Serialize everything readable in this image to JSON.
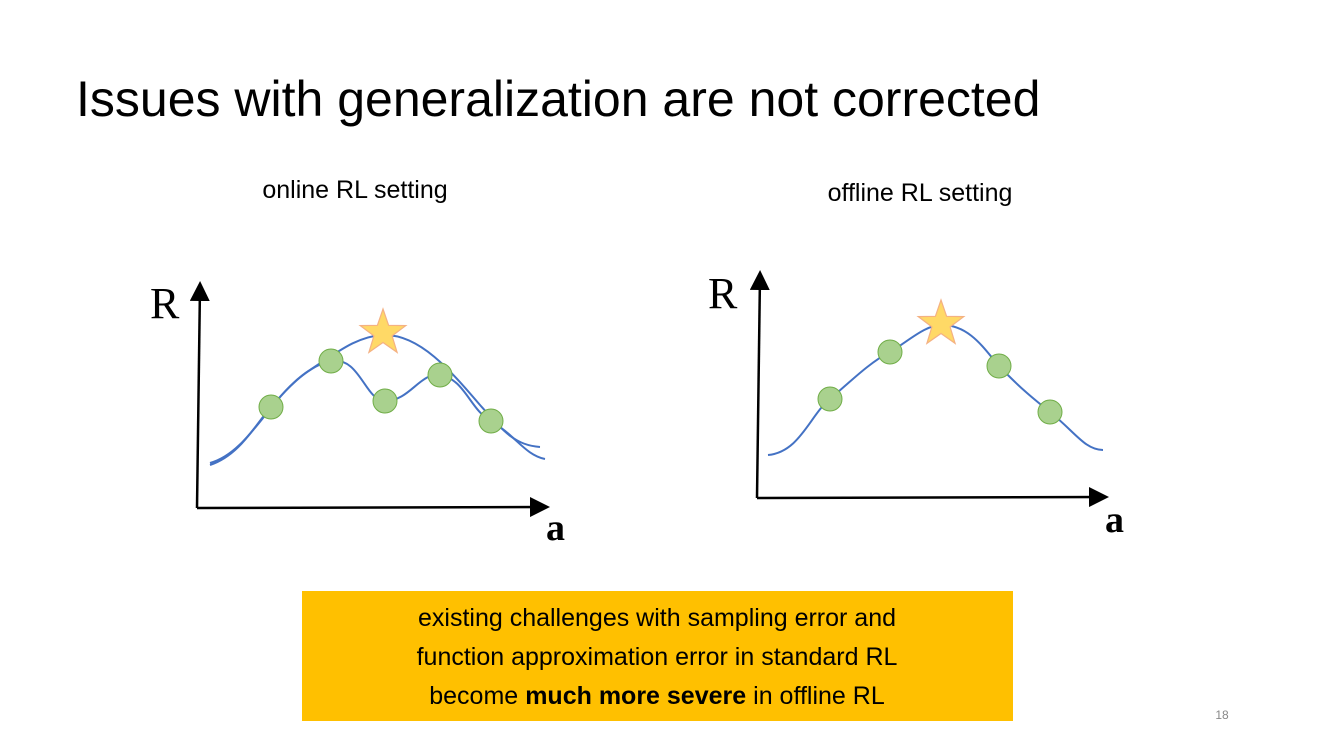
{
  "title": "Issues with generalization are not corrected",
  "panels": [
    {
      "heading": "online RL setting",
      "y_label": "R",
      "x_label": "a"
    },
    {
      "heading": "offline RL setting",
      "y_label": "R",
      "x_label": "a"
    }
  ],
  "callout": {
    "lines": [
      "existing challenges with sampling error and",
      "function approximation error in standard RL"
    ],
    "last_line": [
      "become",
      "much more severe",
      "in offline RL"
    ]
  },
  "page_number": "18"
}
